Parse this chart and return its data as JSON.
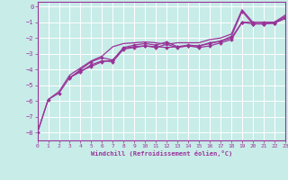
{
  "xlabel": "Windchill (Refroidissement éolien,°C)",
  "bg_color": "#c8ece8",
  "line_color": "#993399",
  "grid_color": "#aad8d8",
  "xmin": 0,
  "xmax": 23,
  "ymin": -8.5,
  "ymax": 0.3,
  "yticks": [
    0,
    -1,
    -2,
    -3,
    -4,
    -5,
    -6,
    -7,
    -8
  ],
  "xticks": [
    0,
    1,
    2,
    3,
    4,
    5,
    6,
    7,
    8,
    9,
    10,
    11,
    12,
    13,
    14,
    15,
    16,
    17,
    18,
    19,
    20,
    21,
    22,
    23
  ],
  "lines": [
    {
      "x": [
        0,
        1,
        2,
        3,
        4,
        5,
        6,
        7,
        8,
        9,
        10,
        11,
        12,
        13,
        14,
        15,
        16,
        17,
        18,
        19,
        20,
        21,
        22,
        23
      ],
      "y": [
        -8.0,
        -5.9,
        -5.5,
        -4.5,
        -4.1,
        -3.8,
        -3.5,
        -3.4,
        -2.65,
        -2.55,
        -2.5,
        -2.55,
        -2.6,
        -2.55,
        -2.5,
        -2.5,
        -2.3,
        -2.2,
        -1.9,
        -0.3,
        -1.1,
        -1.1,
        -1.05,
        -0.75
      ],
      "marker": "D",
      "ms": 2.0,
      "lw": 0.9
    },
    {
      "x": [
        3,
        4,
        5,
        6,
        7,
        8,
        9,
        10,
        11,
        12,
        13,
        14,
        15,
        16,
        17,
        18,
        19,
        20,
        21,
        22,
        23
      ],
      "y": [
        -4.5,
        -4.15,
        -3.7,
        -3.45,
        -3.5,
        -2.7,
        -2.6,
        -2.5,
        -2.6,
        -2.4,
        -2.6,
        -2.5,
        -2.6,
        -2.5,
        -2.3,
        -2.1,
        -1.0,
        -1.1,
        -1.1,
        -1.05,
        -0.75
      ],
      "marker": "D",
      "ms": 2.0,
      "lw": 0.9
    },
    {
      "x": [
        3,
        4,
        5,
        6,
        7,
        8,
        9,
        10,
        11,
        12,
        13,
        14,
        15,
        16,
        17,
        18,
        19,
        20,
        21,
        22,
        23
      ],
      "y": [
        -4.55,
        -4.0,
        -3.5,
        -3.25,
        -3.4,
        -2.6,
        -2.45,
        -2.35,
        -2.45,
        -2.25,
        -2.55,
        -2.45,
        -2.5,
        -2.35,
        -2.2,
        -2.0,
        -1.0,
        -1.0,
        -1.0,
        -1.0,
        -0.65
      ],
      "marker": "D",
      "ms": 2.0,
      "lw": 0.9
    },
    {
      "x": [
        0,
        1,
        2,
        3,
        4,
        5,
        6,
        7,
        8,
        9,
        10,
        11,
        12,
        13,
        14,
        15,
        16,
        17,
        18,
        19,
        20,
        21,
        22,
        23
      ],
      "y": [
        -8.0,
        -5.9,
        -5.4,
        -4.35,
        -3.9,
        -3.45,
        -3.15,
        -2.55,
        -2.35,
        -2.3,
        -2.25,
        -2.3,
        -2.4,
        -2.3,
        -2.3,
        -2.3,
        -2.1,
        -2.0,
        -1.75,
        -0.2,
        -1.0,
        -1.0,
        -1.0,
        -0.55
      ],
      "marker": null,
      "ms": 0,
      "lw": 0.9
    }
  ]
}
